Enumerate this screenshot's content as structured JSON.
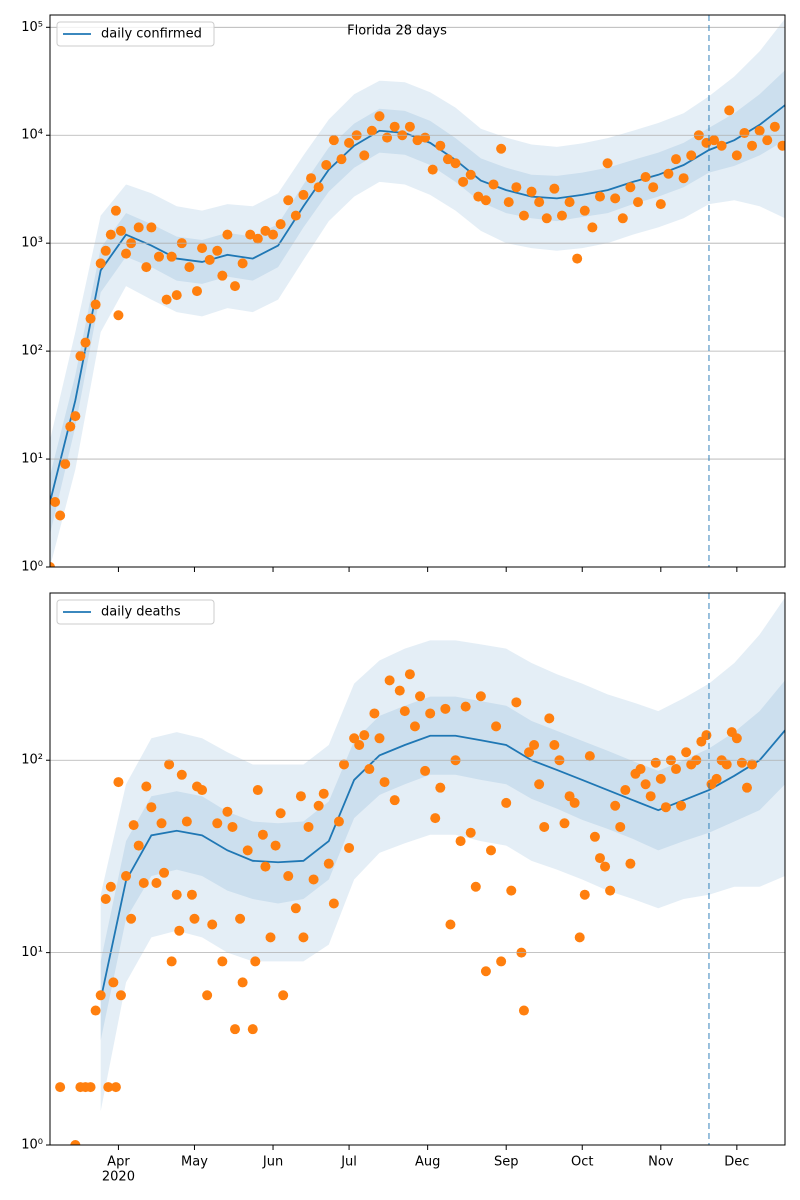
{
  "chart_data": [
    {
      "type": "line",
      "title": "Florida 28 days",
      "log": true,
      "grid": true,
      "legend": "upper left",
      "xlim": [
        0,
        290
      ],
      "ylim": [
        1,
        130000
      ],
      "yticks": [
        {
          "value": 1,
          "label": "10⁰"
        },
        {
          "value": 10,
          "label": "10¹"
        },
        {
          "value": 100,
          "label": "10²"
        },
        {
          "value": 1000,
          "label": "10³"
        },
        {
          "value": 10000,
          "label": "10⁴"
        },
        {
          "value": 100000,
          "label": "10⁵"
        }
      ],
      "xticks": [
        27,
        57,
        88,
        118,
        149,
        180,
        210,
        241,
        271
      ],
      "forecast_start": 260,
      "x": [
        0,
        10,
        20,
        30,
        40,
        50,
        60,
        70,
        80,
        90,
        100,
        110,
        120,
        130,
        140,
        150,
        160,
        170,
        180,
        190,
        200,
        210,
        220,
        230,
        240,
        250,
        260,
        270,
        280,
        290
      ],
      "series": [
        {
          "name": "daily confirmed",
          "color": "#1f77b4",
          "values": [
            4,
            35,
            560,
            1200,
            950,
            720,
            670,
            780,
            720,
            950,
            2200,
            4800,
            8000,
            11000,
            10500,
            8500,
            5900,
            3800,
            3100,
            2700,
            2600,
            2800,
            3100,
            3700,
            4300,
            5300,
            7300,
            9000,
            12500,
            19000
          ]
        }
      ],
      "bands": [
        {
          "color": "#1f77b4",
          "lower": [
            1,
            8,
            150,
            400,
            300,
            230,
            210,
            250,
            230,
            300,
            700,
            1600,
            2700,
            3700,
            3500,
            2800,
            2000,
            1300,
            1000,
            900,
            850,
            900,
            1000,
            1200,
            1400,
            1700,
            2300,
            2500,
            2200,
            1700
          ],
          "upper": [
            15,
            150,
            1800,
            3500,
            2900,
            2200,
            2000,
            2300,
            2200,
            2900,
            6500,
            14000,
            24000,
            32000,
            31000,
            25000,
            18000,
            11500,
            9500,
            8200,
            7800,
            8400,
            9400,
            11000,
            13000,
            16000,
            23000,
            35000,
            60000,
            120000
          ]
        },
        {
          "color": "#1f77b4",
          "lower": [
            2,
            20,
            350,
            750,
            600,
            450,
            420,
            490,
            450,
            600,
            1400,
            3000,
            5000,
            6900,
            6600,
            5300,
            3700,
            2400,
            1900,
            1700,
            1600,
            1750,
            1900,
            2300,
            2700,
            3300,
            4500,
            5200,
            6500,
            9000
          ],
          "upper": [
            7,
            60,
            900,
            1900,
            1500,
            1150,
            1070,
            1250,
            1150,
            1500,
            3500,
            7700,
            12800,
            17600,
            16800,
            13600,
            9400,
            6100,
            5000,
            4300,
            4200,
            4500,
            5000,
            5900,
            6900,
            8500,
            11700,
            16000,
            24000,
            40000
          ]
        }
      ],
      "points": {
        "color": "#ff7f0e",
        "x": [
          0,
          2,
          4,
          6,
          8,
          10,
          12,
          14,
          16,
          18,
          20,
          22,
          24,
          26,
          27,
          28,
          30,
          32,
          35,
          38,
          40,
          43,
          46,
          48,
          50,
          52,
          55,
          58,
          60,
          63,
          66,
          68,
          70,
          73,
          76,
          79,
          82,
          85,
          88,
          91,
          94,
          97,
          100,
          103,
          106,
          109,
          112,
          115,
          118,
          121,
          124,
          127,
          130,
          133,
          136,
          139,
          142,
          145,
          148,
          151,
          154,
          157,
          160,
          163,
          166,
          169,
          172,
          175,
          178,
          181,
          184,
          187,
          190,
          193,
          196,
          199,
          202,
          205,
          208,
          211,
          214,
          217,
          220,
          223,
          226,
          229,
          232,
          235,
          238,
          241,
          244,
          247,
          250,
          253,
          256,
          259,
          262,
          265,
          268,
          271,
          274,
          277,
          280,
          283,
          286,
          289
        ],
        "values": [
          1,
          4,
          3,
          9,
          20,
          25,
          90,
          120,
          200,
          270,
          650,
          850,
          1200,
          2000,
          215,
          1300,
          800,
          1000,
          1400,
          600,
          1400,
          750,
          300,
          750,
          330,
          1000,
          600,
          360,
          900,
          700,
          850,
          500,
          1200,
          400,
          650,
          1200,
          1100,
          1300,
          1200,
          1500,
          2500,
          1800,
          2800,
          4000,
          3300,
          5300,
          9000,
          6000,
          8500,
          10000,
          6500,
          11000,
          15000,
          9500,
          12000,
          10000,
          12000,
          9000,
          9500,
          4800,
          8000,
          6000,
          5500,
          3700,
          4300,
          2700,
          2500,
          3500,
          7500,
          2400,
          3300,
          1800,
          3000,
          2400,
          1700,
          3200,
          1800,
          2400,
          720,
          2000,
          1400,
          2700,
          5500,
          2600,
          1700,
          3300,
          2400,
          4100,
          3300,
          2300,
          4400,
          6000,
          4000,
          6500,
          10000,
          8500,
          9000,
          8000,
          17000,
          6500,
          10500,
          8000,
          11000,
          9000,
          12000,
          8000
        ]
      }
    },
    {
      "type": "line",
      "log": true,
      "grid": true,
      "legend": "upper left",
      "xlim": [
        0,
        290
      ],
      "ylim": [
        1,
        740
      ],
      "yticks": [
        {
          "value": 1,
          "label": "10⁰"
        },
        {
          "value": 10,
          "label": "10¹"
        },
        {
          "value": 100,
          "label": "10²"
        }
      ],
      "xticks": [
        {
          "value": 27,
          "label": "Apr"
        },
        {
          "value": 57,
          "label": "May"
        },
        {
          "value": 88,
          "label": "Jun"
        },
        {
          "value": 118,
          "label": "Jul"
        },
        {
          "value": 149,
          "label": "Aug"
        },
        {
          "value": 180,
          "label": "Sep"
        },
        {
          "value": 210,
          "label": "Oct"
        },
        {
          "value": 241,
          "label": "Nov"
        },
        {
          "value": 271,
          "label": "Dec"
        }
      ],
      "year_label": "2020",
      "forecast_start": 260,
      "x": [
        0,
        10,
        20,
        30,
        40,
        50,
        60,
        70,
        80,
        90,
        100,
        110,
        120,
        130,
        140,
        150,
        160,
        170,
        180,
        190,
        200,
        210,
        220,
        230,
        240,
        250,
        260,
        270,
        280,
        290
      ],
      "series": [
        {
          "name": "daily deaths",
          "color": "#1f77b4",
          "values": [
            null,
            null,
            5.7,
            23.7,
            40.7,
            43,
            40.7,
            34,
            30,
            29.5,
            30,
            38,
            79,
            106,
            120,
            134,
            134,
            127,
            120,
            100,
            89,
            79,
            70,
            62,
            55,
            62,
            70,
            83,
            100,
            143
          ]
        }
      ],
      "bands": [
        {
          "color": "#1f77b4",
          "lower": [
            null,
            null,
            1.5,
            7,
            12,
            13,
            12,
            10,
            9,
            9,
            9,
            11,
            24,
            33,
            37,
            41,
            41,
            38,
            36,
            30,
            27,
            24,
            21,
            19,
            17,
            19,
            20,
            22,
            22,
            25
          ],
          "upper": [
            null,
            null,
            20,
            75,
            130,
            140,
            130,
            110,
            95,
            95,
            95,
            120,
            250,
            330,
            380,
            420,
            420,
            400,
            380,
            320,
            280,
            250,
            220,
            200,
            180,
            210,
            250,
            320,
            450,
            700
          ]
        },
        {
          "color": "#1f77b4",
          "lower": [
            null,
            null,
            3.5,
            15,
            25,
            27,
            25,
            21,
            19,
            18,
            19,
            24,
            50,
            66,
            75,
            84,
            84,
            79,
            75,
            63,
            56,
            49,
            44,
            39,
            34,
            38,
            42,
            48,
            55,
            75
          ],
          "upper": [
            null,
            null,
            9,
            38,
            65,
            69,
            65,
            54,
            48,
            47,
            48,
            61,
            126,
            170,
            192,
            214,
            214,
            203,
            192,
            160,
            142,
            126,
            112,
            99,
            88,
            100,
            115,
            140,
            180,
            260
          ]
        }
      ],
      "points": {
        "color": "#ff7f0e",
        "x": [
          4,
          10,
          12,
          14,
          16,
          18,
          20,
          22,
          23,
          24,
          25,
          26,
          27,
          28,
          30,
          32,
          33,
          35,
          37,
          38,
          40,
          42,
          44,
          45,
          47,
          48,
          50,
          51,
          52,
          54,
          56,
          57,
          58,
          60,
          62,
          64,
          66,
          68,
          70,
          72,
          73,
          75,
          76,
          78,
          80,
          81,
          82,
          84,
          85,
          87,
          89,
          91,
          92,
          94,
          97,
          99,
          100,
          102,
          104,
          106,
          108,
          110,
          112,
          114,
          116,
          118,
          120,
          122,
          124,
          126,
          128,
          130,
          132,
          134,
          136,
          138,
          140,
          142,
          144,
          146,
          148,
          150,
          152,
          154,
          156,
          158,
          160,
          162,
          164,
          166,
          168,
          170,
          172,
          174,
          176,
          178,
          180,
          182,
          184,
          186,
          187,
          189,
          191,
          193,
          195,
          197,
          199,
          201,
          203,
          205,
          207,
          209,
          211,
          213,
          215,
          217,
          219,
          221,
          223,
          225,
          227,
          229,
          231,
          233,
          235,
          237,
          239,
          241,
          243,
          245,
          247,
          249,
          251,
          253,
          255,
          257,
          259,
          261,
          263,
          265,
          267,
          269,
          271,
          273,
          275,
          277
        ],
        "values": [
          2,
          1,
          2,
          2,
          2,
          5,
          6,
          19,
          2,
          22,
          7,
          2,
          77,
          6,
          25,
          15,
          46,
          36,
          23,
          73,
          57,
          23,
          47,
          26,
          95,
          9,
          20,
          13,
          84,
          48,
          20,
          15,
          73,
          70,
          6,
          14,
          47,
          9,
          54,
          45,
          4,
          15,
          7,
          34,
          4,
          9,
          70,
          41,
          28,
          12,
          36,
          53,
          6,
          25,
          17,
          65,
          12,
          45,
          24,
          58,
          67,
          29,
          18,
          48,
          95,
          35,
          130,
          120,
          135,
          90,
          175,
          130,
          77,
          260,
          62,
          230,
          180,
          280,
          150,
          215,
          88,
          175,
          50,
          72,
          185,
          14,
          100,
          38,
          190,
          42,
          22,
          215,
          8,
          34,
          150,
          9,
          60,
          21,
          200,
          10,
          5,
          110,
          120,
          75,
          45,
          165,
          120,
          100,
          47,
          65,
          60,
          12,
          20,
          105,
          40,
          31,
          28,
          21,
          58,
          45,
          70,
          29,
          85,
          90,
          75,
          65,
          97,
          80,
          57,
          100,
          90,
          58,
          110,
          95,
          100,
          125,
          135,
          75,
          80,
          100,
          95,
          140,
          130,
          97,
          72,
          95
        ]
      }
    }
  ]
}
